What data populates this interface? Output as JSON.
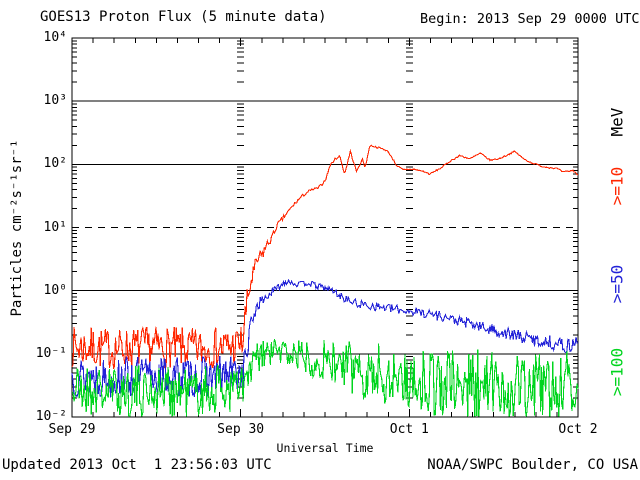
{
  "header": {
    "title": "GOES13 Proton Flux (5 minute data)",
    "begin": "Begin: 2013 Sep 29 0000 UTC"
  },
  "footer": {
    "updated": "Updated 2013 Oct  1 23:56:03 UTC",
    "credit": "NOAA/SWPC Boulder, CO USA"
  },
  "chart_data": {
    "type": "line",
    "title": "GOES13 Proton Flux (5 minute data)",
    "begin_label": "Begin: 2013 Sep 29 0000 UTC",
    "xlabel": "Universal Time",
    "ylabel": "Particles cm⁻²s⁻¹sr⁻¹",
    "yscale": "log",
    "ylim": [
      0.01,
      10000
    ],
    "ylim_exp": [
      -2,
      4
    ],
    "xlim_hours": [
      0,
      72
    ],
    "x_minor_step_hours": 3,
    "x_ticks": [
      {
        "label": "Sep 29",
        "t": 0
      },
      {
        "label": "Sep 30",
        "t": 24
      },
      {
        "label": "Oct 1",
        "t": 48
      },
      {
        "label": "Oct 2",
        "t": 72
      }
    ],
    "y_ticks": [
      {
        "label": "10⁴",
        "exp": 4
      },
      {
        "label": "10³",
        "exp": 3
      },
      {
        "label": "10²",
        "exp": 2
      },
      {
        "label": "10¹",
        "exp": 1
      },
      {
        "label": "10⁰",
        "exp": 0
      },
      {
        "label": "10⁻¹",
        "exp": -1
      },
      {
        "label": "10⁻²",
        "exp": -2
      }
    ],
    "gridlines": [
      {
        "exp": 3,
        "style": "solid"
      },
      {
        "exp": 2,
        "style": "solid"
      },
      {
        "exp": 1,
        "style": "dashed"
      },
      {
        "exp": 0,
        "style": "solid"
      },
      {
        "exp": -1,
        "style": "solid"
      }
    ],
    "day_boundaries_hours": [
      24,
      48
    ],
    "legend_title": "MeV",
    "series": [
      {
        "name": "gte10-mev",
        "label": ">=10",
        "color": "#ff2600",
        "seed": 7,
        "anchors_t_flux_noise": [
          [
            0,
            0.13,
            0.33
          ],
          [
            6,
            0.12,
            0.33
          ],
          [
            12,
            0.13,
            0.33
          ],
          [
            18,
            0.12,
            0.33
          ],
          [
            23,
            0.13,
            0.33
          ],
          [
            24.3,
            0.15,
            0.3
          ],
          [
            24.6,
            0.35,
            0.3
          ],
          [
            25.0,
            0.7,
            0.25
          ],
          [
            25.4,
            1.3,
            0.22
          ],
          [
            25.9,
            2.0,
            0.15
          ],
          [
            26.4,
            3.0,
            0.12
          ],
          [
            27.0,
            3.6,
            0.12
          ],
          [
            27.6,
            5.0,
            0.08
          ],
          [
            28.2,
            6.3,
            0.07
          ],
          [
            28.7,
            8.0,
            0.05
          ],
          [
            29.2,
            11,
            0.04
          ],
          [
            29.8,
            13,
            0.04
          ],
          [
            30.6,
            17,
            0.035
          ],
          [
            31.3,
            21,
            0.03
          ],
          [
            32.0,
            26,
            0.03
          ],
          [
            32.7,
            31,
            0.025
          ],
          [
            33.6,
            37,
            0.02
          ],
          [
            34.3,
            40,
            0.02
          ],
          [
            35.0,
            42,
            0.02
          ],
          [
            35.7,
            50,
            0.02
          ],
          [
            36.2,
            62,
            0.02
          ],
          [
            36.7,
            95,
            0.018
          ],
          [
            37.4,
            120,
            0.015
          ],
          [
            38.1,
            135,
            0.015
          ],
          [
            38.8,
            70,
            0.015
          ],
          [
            39.6,
            160,
            0.015
          ],
          [
            40.5,
            76,
            0.015
          ],
          [
            41.3,
            122,
            0.015
          ],
          [
            41.7,
            88,
            0.015
          ],
          [
            42.4,
            200,
            0.012
          ],
          [
            43.1,
            190,
            0.012
          ],
          [
            43.9,
            180,
            0.012
          ],
          [
            44.8,
            165,
            0.012
          ],
          [
            45.4,
            135,
            0.012
          ],
          [
            46.2,
            96,
            0.012
          ],
          [
            47.1,
            82,
            0.012
          ],
          [
            48.5,
            84,
            0.012
          ],
          [
            49.9,
            78,
            0.012
          ],
          [
            50.9,
            70,
            0.012
          ],
          [
            52.4,
            86,
            0.012
          ],
          [
            53.8,
            112,
            0.012
          ],
          [
            55.2,
            138,
            0.012
          ],
          [
            56.6,
            122,
            0.012
          ],
          [
            58.1,
            150,
            0.012
          ],
          [
            59.5,
            116,
            0.012
          ],
          [
            60.9,
            124,
            0.012
          ],
          [
            63.0,
            160,
            0.012
          ],
          [
            64.2,
            124,
            0.012
          ],
          [
            65.2,
            108,
            0.012
          ],
          [
            67.0,
            92,
            0.012
          ],
          [
            69.0,
            86,
            0.012
          ],
          [
            69.9,
            75,
            0.012
          ],
          [
            71.3,
            80,
            0.012
          ],
          [
            72,
            68,
            0.012
          ]
        ]
      },
      {
        "name": "gte50-mev",
        "label": ">=50",
        "color": "#2323d8",
        "seed": 13,
        "anchors_t_flux_noise": [
          [
            0,
            0.045,
            0.33
          ],
          [
            6,
            0.042,
            0.33
          ],
          [
            12,
            0.045,
            0.33
          ],
          [
            18,
            0.042,
            0.33
          ],
          [
            24.2,
            0.05,
            0.3
          ],
          [
            24.7,
            0.08,
            0.25
          ],
          [
            25.2,
            0.18,
            0.22
          ],
          [
            25.8,
            0.4,
            0.15
          ],
          [
            26.4,
            0.6,
            0.1
          ],
          [
            27.2,
            0.72,
            0.08
          ],
          [
            28.2,
            0.9,
            0.07
          ],
          [
            29.2,
            1.1,
            0.06
          ],
          [
            30.2,
            1.35,
            0.05
          ],
          [
            30.8,
            1.45,
            0.05
          ],
          [
            31.6,
            1.3,
            0.05
          ],
          [
            32.6,
            1.25,
            0.05
          ],
          [
            33.6,
            1.35,
            0.05
          ],
          [
            34.6,
            1.2,
            0.05
          ],
          [
            35.8,
            1.12,
            0.05
          ],
          [
            37.1,
            1.0,
            0.06
          ],
          [
            38.5,
            0.78,
            0.06
          ],
          [
            40.5,
            0.62,
            0.07
          ],
          [
            42.5,
            0.58,
            0.07
          ],
          [
            44.5,
            0.54,
            0.07
          ],
          [
            46.5,
            0.5,
            0.07
          ],
          [
            48.5,
            0.47,
            0.07
          ],
          [
            50.5,
            0.44,
            0.08
          ],
          [
            52.5,
            0.4,
            0.08
          ],
          [
            54.5,
            0.34,
            0.08
          ],
          [
            56.5,
            0.3,
            0.09
          ],
          [
            58.5,
            0.26,
            0.09
          ],
          [
            60.5,
            0.23,
            0.1
          ],
          [
            62.5,
            0.2,
            0.1
          ],
          [
            64.5,
            0.18,
            0.1
          ],
          [
            66.5,
            0.16,
            0.11
          ],
          [
            68.5,
            0.15,
            0.12
          ],
          [
            70.5,
            0.13,
            0.12
          ],
          [
            72,
            0.16,
            0.12
          ]
        ]
      },
      {
        "name": "gte100-mev",
        "label": ">=100",
        "color": "#00d51e",
        "seed": 21,
        "anchors_t_flux_noise": [
          [
            0,
            0.027,
            0.42
          ],
          [
            6,
            0.025,
            0.42
          ],
          [
            12,
            0.027,
            0.42
          ],
          [
            18,
            0.025,
            0.42
          ],
          [
            24.5,
            0.03,
            0.4
          ],
          [
            25.3,
            0.05,
            0.32
          ],
          [
            26.2,
            0.08,
            0.28
          ],
          [
            27.5,
            0.1,
            0.25
          ],
          [
            29.5,
            0.11,
            0.25
          ],
          [
            31.5,
            0.1,
            0.27
          ],
          [
            33.5,
            0.09,
            0.3
          ],
          [
            35.5,
            0.08,
            0.33
          ],
          [
            37.5,
            0.07,
            0.38
          ],
          [
            39.5,
            0.06,
            0.42
          ],
          [
            42,
            0.052,
            0.46
          ],
          [
            45,
            0.046,
            0.5
          ],
          [
            48,
            0.04,
            0.52
          ],
          [
            51,
            0.036,
            0.55
          ],
          [
            54,
            0.032,
            0.58
          ],
          [
            58,
            0.03,
            0.6
          ],
          [
            62,
            0.029,
            0.6
          ],
          [
            66,
            0.03,
            0.6
          ],
          [
            70,
            0.031,
            0.6
          ],
          [
            72,
            0.032,
            0.6
          ]
        ]
      }
    ]
  }
}
